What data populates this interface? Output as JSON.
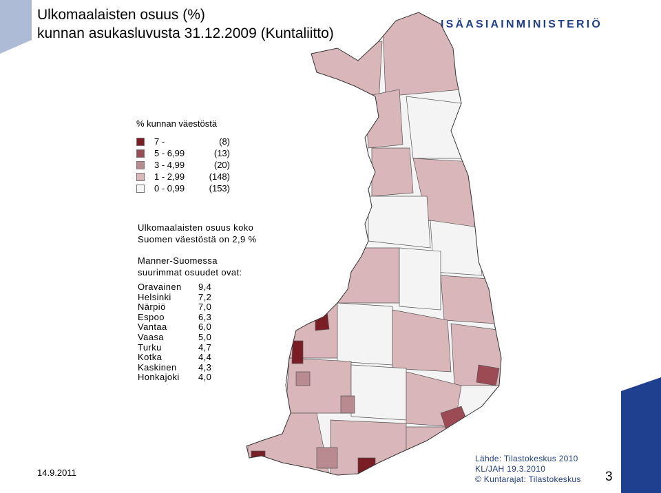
{
  "title_line1": "Ulkomaalaisten osuus (%)",
  "title_line2": "kunnan asukasluvusta 31.12.2009 (Kuntaliitto)",
  "ministry": "ISÄASIAINMINISTERIÖ",
  "legend": {
    "heading": "% kunnan väestöstä",
    "classes": [
      {
        "range": "7 -",
        "count": "(8)",
        "color": "#7b1d24"
      },
      {
        "range": "5 - 6,99",
        "count": "(13)",
        "color": "#9c4b55"
      },
      {
        "range": "3 - 4,99",
        "count": "(20)",
        "color": "#b98a90"
      },
      {
        "range": "1 - 2,99",
        "count": "(148)",
        "color": "#d9b6ba"
      },
      {
        "range": "0 - 0,99",
        "count": "(153)",
        "color": "#f4f4f4"
      }
    ]
  },
  "summary_line1": "Ulkomaalaisten osuus koko",
  "summary_line2": "Suomen väestöstä on 2,9 %",
  "top_heading_line1": "Manner-Suomessa",
  "top_heading_line2": "suurimmat osuudet ovat:",
  "top": [
    {
      "name": "Oravainen",
      "value": "9,4"
    },
    {
      "name": "Helsinki",
      "value": "7,2"
    },
    {
      "name": "Närpiö",
      "value": "7,0"
    },
    {
      "name": "Espoo",
      "value": "6,3"
    },
    {
      "name": "Vantaa",
      "value": "6,0"
    },
    {
      "name": "Vaasa",
      "value": "5,0"
    },
    {
      "name": "Turku",
      "value": "4,7"
    },
    {
      "name": "Kotka",
      "value": "4,4"
    },
    {
      "name": "Kaskinen",
      "value": "4,3"
    },
    {
      "name": "Honkajoki",
      "value": "4,0"
    }
  ],
  "date": "14.9.2011",
  "source_line1": "Lähde: Tilastokeskus 2010",
  "source_line2": "KL/JAH 19.3.2010",
  "source_line3": "© Kuntarajat: Tilastokeskus",
  "page_number": "3",
  "colors": {
    "accent_blue": "#1f3f8f",
    "deco_blue": "#aebbd6",
    "deco_navy": "#1f3f8f"
  }
}
